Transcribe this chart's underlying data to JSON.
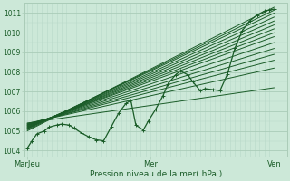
{
  "background_color": "#cce8d8",
  "plot_bg_color": "#cce8d8",
  "grid_color_major": "#aaccb8",
  "grid_color_minor": "#b8d8c8",
  "line_color": "#1a5c28",
  "ylim": [
    1003.7,
    1011.5
  ],
  "yticks": [
    1004,
    1005,
    1006,
    1007,
    1008,
    1009,
    1010,
    1011
  ],
  "xtick_labels": [
    "MarJeu",
    "Mer",
    "Ven"
  ],
  "xtick_positions": [
    0.0,
    0.5,
    1.0
  ],
  "xlabel": "Pression niveau de la mer( hPa )",
  "ensemble_lines": [
    [
      [
        0.0,
        1005.0
      ],
      [
        1.0,
        1011.3
      ]
    ],
    [
      [
        0.0,
        1005.05
      ],
      [
        1.0,
        1011.15
      ]
    ],
    [
      [
        0.0,
        1005.1
      ],
      [
        1.0,
        1011.0
      ]
    ],
    [
      [
        0.0,
        1005.12
      ],
      [
        1.0,
        1010.8
      ]
    ],
    [
      [
        0.0,
        1005.15
      ],
      [
        1.0,
        1010.6
      ]
    ],
    [
      [
        0.0,
        1005.17
      ],
      [
        1.0,
        1010.4
      ]
    ],
    [
      [
        0.0,
        1005.2
      ],
      [
        1.0,
        1010.2
      ]
    ],
    [
      [
        0.0,
        1005.22
      ],
      [
        1.0,
        1010.0
      ]
    ],
    [
      [
        0.0,
        1005.25
      ],
      [
        1.0,
        1009.8
      ]
    ],
    [
      [
        0.0,
        1005.28
      ],
      [
        1.0,
        1009.5
      ]
    ],
    [
      [
        0.0,
        1005.3
      ],
      [
        1.0,
        1009.2
      ]
    ],
    [
      [
        0.0,
        1005.32
      ],
      [
        1.0,
        1008.9
      ]
    ],
    [
      [
        0.0,
        1005.35
      ],
      [
        1.0,
        1008.6
      ]
    ],
    [
      [
        0.0,
        1005.38
      ],
      [
        1.0,
        1008.2
      ]
    ],
    [
      [
        0.0,
        1005.4
      ],
      [
        1.0,
        1007.2
      ]
    ]
  ],
  "actual_x": [
    0.0,
    0.02,
    0.04,
    0.07,
    0.09,
    0.12,
    0.14,
    0.17,
    0.19,
    0.22,
    0.25,
    0.28,
    0.31,
    0.34,
    0.37,
    0.4,
    0.42,
    0.44,
    0.47,
    0.49,
    0.52,
    0.55,
    0.57,
    0.6,
    0.62,
    0.65,
    0.67,
    0.7,
    0.72,
    0.75,
    0.78,
    0.81,
    0.84,
    0.87,
    0.9,
    0.93,
    0.96,
    0.98,
    1.0
  ],
  "actual_y": [
    1004.1,
    1004.5,
    1004.85,
    1005.0,
    1005.2,
    1005.3,
    1005.35,
    1005.3,
    1005.15,
    1004.9,
    1004.7,
    1004.55,
    1004.5,
    1005.2,
    1005.9,
    1006.4,
    1006.55,
    1005.3,
    1005.05,
    1005.5,
    1006.1,
    1006.8,
    1007.4,
    1007.85,
    1008.05,
    1007.85,
    1007.5,
    1007.05,
    1007.15,
    1007.1,
    1007.05,
    1007.9,
    1009.2,
    1010.1,
    1010.6,
    1010.9,
    1011.1,
    1011.15,
    1011.2
  ]
}
